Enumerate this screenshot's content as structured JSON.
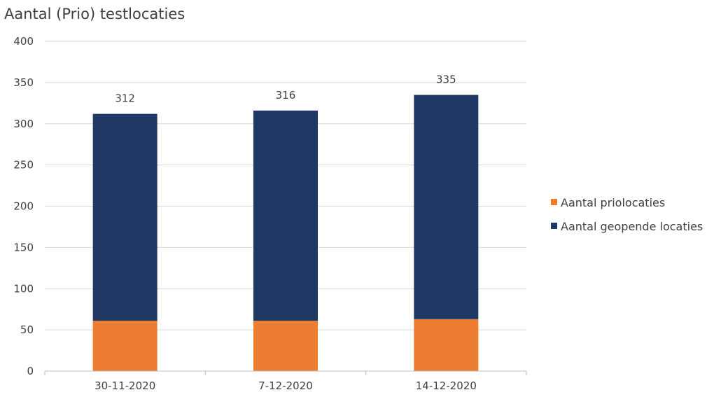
{
  "chart_data": {
    "type": "bar",
    "stacked": true,
    "title": "Aantal (Prio) testlocaties",
    "xlabel": "",
    "ylabel": "",
    "categories": [
      "30-11-2020",
      "7-12-2020",
      "14-12-2020"
    ],
    "series": [
      {
        "name": "Aantal priolocaties",
        "values": [
          61,
          61,
          63
        ],
        "color": "#ED7D31"
      },
      {
        "name": "Aantal geopende locaties",
        "values": [
          251,
          255,
          272
        ],
        "color": "#1F3864"
      }
    ],
    "totals": [
      312,
      316,
      335
    ],
    "ylim": [
      0,
      400
    ],
    "yticks": [
      0,
      50,
      100,
      150,
      200,
      250,
      300,
      350,
      400
    ],
    "grid": true,
    "legend": "right"
  }
}
